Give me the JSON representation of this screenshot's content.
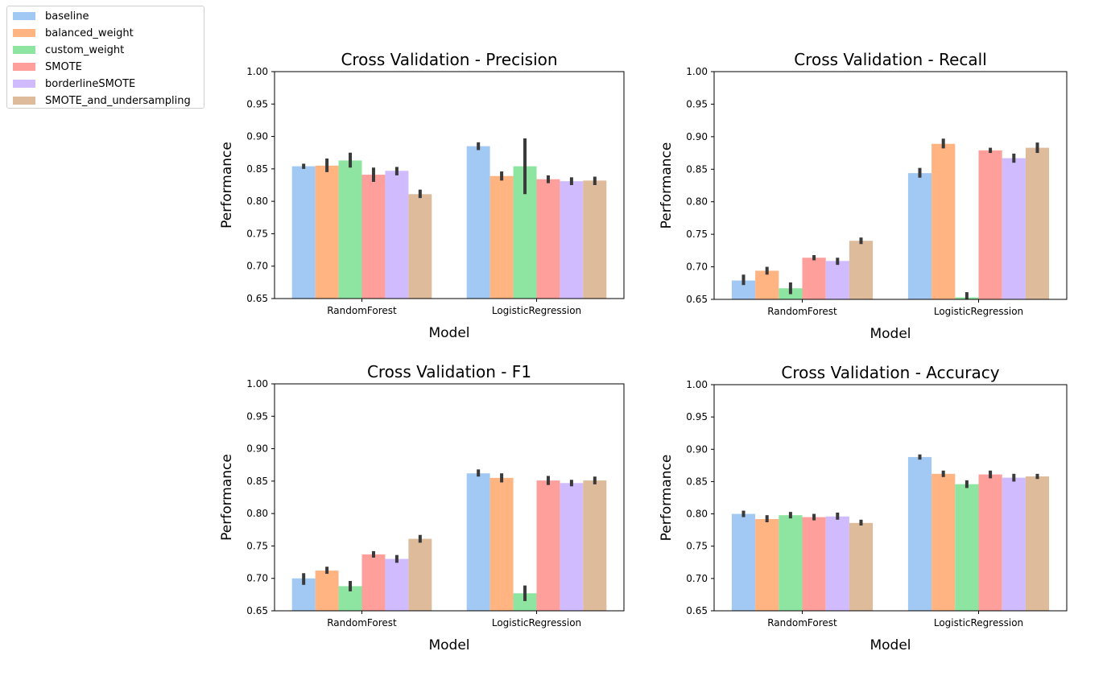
{
  "legend": {
    "items": [
      {
        "label": "baseline",
        "color": "#a1c9f4"
      },
      {
        "label": "balanced_weight",
        "color": "#ffb482"
      },
      {
        "label": "custom_weight",
        "color": "#8de5a1"
      },
      {
        "label": "SMOTE",
        "color": "#ff9f9b"
      },
      {
        "label": "borderlineSMOTE",
        "color": "#d0bbff"
      },
      {
        "label": "SMOTE_and_undersampling",
        "color": "#debb9b"
      }
    ]
  },
  "chart_data": [
    {
      "type": "bar",
      "title": "Cross Validation - Precision",
      "xlabel": "Model",
      "ylabel": "Performance",
      "ylim": [
        0.65,
        1.0
      ],
      "yticks": [
        "0.65",
        "0.70",
        "0.75",
        "0.80",
        "0.85",
        "0.90",
        "0.95",
        "1.00"
      ],
      "categories": [
        "RandomForest",
        "LogisticRegression"
      ],
      "series": [
        {
          "name": "baseline",
          "values": [
            0.854,
            0.885
          ],
          "err": [
            [
              0.85,
              0.858
            ],
            [
              0.879,
              0.891
            ]
          ]
        },
        {
          "name": "balanced_weight",
          "values": [
            0.855,
            0.839
          ],
          "err": [
            [
              0.845,
              0.866
            ],
            [
              0.832,
              0.846
            ]
          ]
        },
        {
          "name": "custom_weight",
          "values": [
            0.863,
            0.854
          ],
          "err": [
            [
              0.852,
              0.875
            ],
            [
              0.811,
              0.897
            ]
          ]
        },
        {
          "name": "SMOTE",
          "values": [
            0.841,
            0.834
          ],
          "err": [
            [
              0.83,
              0.852
            ],
            [
              0.828,
              0.84
            ]
          ]
        },
        {
          "name": "borderlineSMOTE",
          "values": [
            0.847,
            0.831
          ],
          "err": [
            [
              0.84,
              0.853
            ],
            [
              0.825,
              0.837
            ]
          ]
        },
        {
          "name": "SMOTE_and_undersampling",
          "values": [
            0.811,
            0.832
          ],
          "err": [
            [
              0.805,
              0.818
            ],
            [
              0.825,
              0.838
            ]
          ]
        }
      ]
    },
    {
      "type": "bar",
      "title": "Cross Validation - Recall",
      "xlabel": "Model",
      "ylabel": "Performance",
      "ylim": [
        0.65,
        1.0
      ],
      "yticks": [
        "0.65",
        "0.70",
        "0.75",
        "0.80",
        "0.85",
        "0.90",
        "0.95",
        "1.00"
      ],
      "categories": [
        "RandomForest",
        "LogisticRegression"
      ],
      "series": [
        {
          "name": "baseline",
          "values": [
            0.679,
            0.844
          ],
          "err": [
            [
              0.672,
              0.688
            ],
            [
              0.837,
              0.852
            ]
          ]
        },
        {
          "name": "balanced_weight",
          "values": [
            0.694,
            0.889
          ],
          "err": [
            [
              0.688,
              0.7
            ],
            [
              0.882,
              0.897
            ]
          ]
        },
        {
          "name": "custom_weight",
          "values": [
            0.667,
            0.653
          ],
          "err": [
            [
              0.658,
              0.676
            ],
            [
              0.648,
              0.661
            ]
          ]
        },
        {
          "name": "SMOTE",
          "values": [
            0.714,
            0.879
          ],
          "err": [
            [
              0.71,
              0.718
            ],
            [
              0.875,
              0.883
            ]
          ]
        },
        {
          "name": "borderlineSMOTE",
          "values": [
            0.709,
            0.867
          ],
          "err": [
            [
              0.703,
              0.714
            ],
            [
              0.86,
              0.874
            ]
          ]
        },
        {
          "name": "SMOTE_and_undersampling",
          "values": [
            0.74,
            0.883
          ],
          "err": [
            [
              0.735,
              0.745
            ],
            [
              0.875,
              0.891
            ]
          ]
        }
      ]
    },
    {
      "type": "bar",
      "title": "Cross Validation - F1",
      "xlabel": "Model",
      "ylabel": "Performance",
      "ylim": [
        0.65,
        1.0
      ],
      "yticks": [
        "0.65",
        "0.70",
        "0.75",
        "0.80",
        "0.85",
        "0.90",
        "0.95",
        "1.00"
      ],
      "categories": [
        "RandomForest",
        "LogisticRegression"
      ],
      "series": [
        {
          "name": "baseline",
          "values": [
            0.7,
            0.862
          ],
          "err": [
            [
              0.69,
              0.708
            ],
            [
              0.857,
              0.868
            ]
          ]
        },
        {
          "name": "balanced_weight",
          "values": [
            0.712,
            0.855
          ],
          "err": [
            [
              0.707,
              0.718
            ],
            [
              0.848,
              0.862
            ]
          ]
        },
        {
          "name": "custom_weight",
          "values": [
            0.688,
            0.677
          ],
          "err": [
            [
              0.68,
              0.696
            ],
            [
              0.665,
              0.689
            ]
          ]
        },
        {
          "name": "SMOTE",
          "values": [
            0.737,
            0.851
          ],
          "err": [
            [
              0.732,
              0.742
            ],
            [
              0.844,
              0.858
            ]
          ]
        },
        {
          "name": "borderlineSMOTE",
          "values": [
            0.73,
            0.847
          ],
          "err": [
            [
              0.724,
              0.736
            ],
            [
              0.842,
              0.852
            ]
          ]
        },
        {
          "name": "SMOTE_and_undersampling",
          "values": [
            0.761,
            0.851
          ],
          "err": [
            [
              0.755,
              0.767
            ],
            [
              0.845,
              0.857
            ]
          ]
        }
      ]
    },
    {
      "type": "bar",
      "title": "Cross Validation - Accuracy",
      "xlabel": "Model",
      "ylabel": "Performance",
      "ylim": [
        0.65,
        1.0
      ],
      "yticks": [
        "0.65",
        "0.70",
        "0.75",
        "0.80",
        "0.85",
        "0.90",
        "0.95",
        "1.00"
      ],
      "categories": [
        "RandomForest",
        "LogisticRegression"
      ],
      "series": [
        {
          "name": "baseline",
          "values": [
            0.8,
            0.888
          ],
          "err": [
            [
              0.795,
              0.805
            ],
            [
              0.884,
              0.892
            ]
          ]
        },
        {
          "name": "balanced_weight",
          "values": [
            0.792,
            0.862
          ],
          "err": [
            [
              0.787,
              0.798
            ],
            [
              0.857,
              0.867
            ]
          ]
        },
        {
          "name": "custom_weight",
          "values": [
            0.798,
            0.846
          ],
          "err": [
            [
              0.793,
              0.803
            ],
            [
              0.84,
              0.852
            ]
          ]
        },
        {
          "name": "SMOTE",
          "values": [
            0.795,
            0.861
          ],
          "err": [
            [
              0.79,
              0.8
            ],
            [
              0.855,
              0.867
            ]
          ]
        },
        {
          "name": "borderlineSMOTE",
          "values": [
            0.796,
            0.856
          ],
          "err": [
            [
              0.791,
              0.802
            ],
            [
              0.85,
              0.862
            ]
          ]
        },
        {
          "name": "SMOTE_and_undersampling",
          "values": [
            0.786,
            0.858
          ],
          "err": [
            [
              0.782,
              0.791
            ],
            [
              0.854,
              0.862
            ]
          ]
        }
      ]
    }
  ]
}
